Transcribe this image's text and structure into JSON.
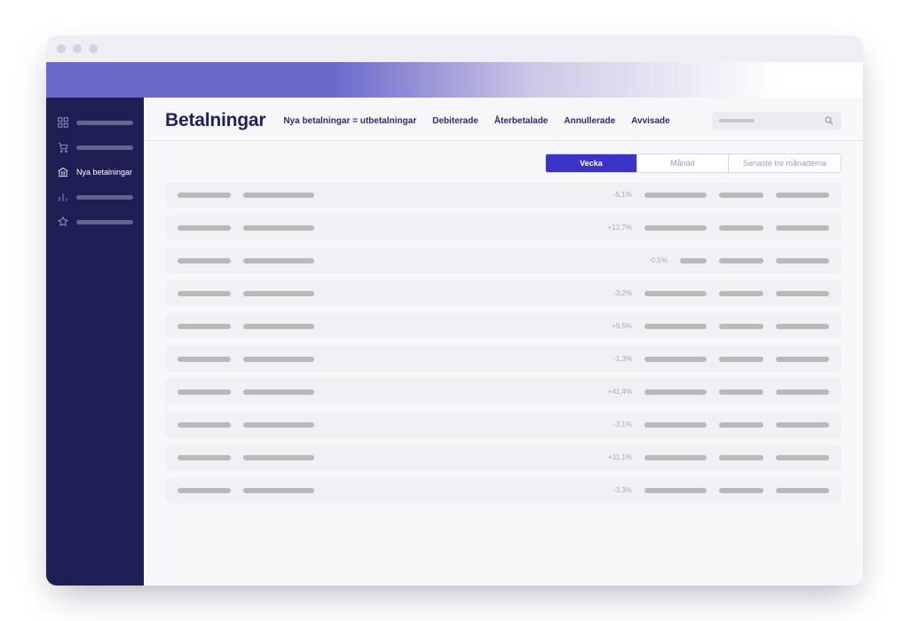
{
  "colors": {
    "navy": "#1e1f54",
    "accent": "#3b33c8",
    "gradient_start": "#6a6acb",
    "gradient_end": "#cfc8e6",
    "title": "#22225d",
    "placeholder_grey": "#b9b9b9",
    "row_bg": "#f1f1f5",
    "main_bg": "#f7f7fa",
    "chrome_bg": "#f0eef4",
    "traffic_dot": "#d5d0e0"
  },
  "sidebar": {
    "items": [
      {
        "icon": "grid-icon",
        "active": false
      },
      {
        "icon": "cart-icon",
        "active": false
      },
      {
        "icon": "bank-icon",
        "active": true,
        "label": "Nya betalningar"
      },
      {
        "icon": "bars-icon",
        "active": false
      },
      {
        "icon": "star-icon",
        "active": false
      }
    ]
  },
  "header": {
    "title": "Betalningar",
    "tabs": [
      {
        "label": "Nya betalningar = utbetalningar"
      },
      {
        "label": "Debiterade"
      },
      {
        "label": "Återbetalade"
      },
      {
        "label": "Annullerade"
      },
      {
        "label": "Avvisade"
      }
    ],
    "search_placeholder": ""
  },
  "segmented": {
    "options": [
      {
        "label": "Vecka",
        "active": true
      },
      {
        "label": "Månad",
        "active": false
      },
      {
        "label": "Senaste tre månaderna",
        "active": false
      }
    ]
  },
  "rows": [
    {
      "pct": "-5,1%",
      "c3_short": false
    },
    {
      "pct": "+12,7%",
      "c3_short": false
    },
    {
      "pct": "-0,5%",
      "c3_short": true
    },
    {
      "pct": "-3,2%",
      "c3_short": false
    },
    {
      "pct": "+9,5%",
      "c3_short": false
    },
    {
      "pct": "-1,3%",
      "c3_short": false
    },
    {
      "pct": "+41,4%",
      "c3_short": false
    },
    {
      "pct": "-3,1%",
      "c3_short": false
    },
    {
      "pct": "+11,1%",
      "c3_short": false
    },
    {
      "pct": "-3,3%",
      "c3_short": false
    }
  ]
}
